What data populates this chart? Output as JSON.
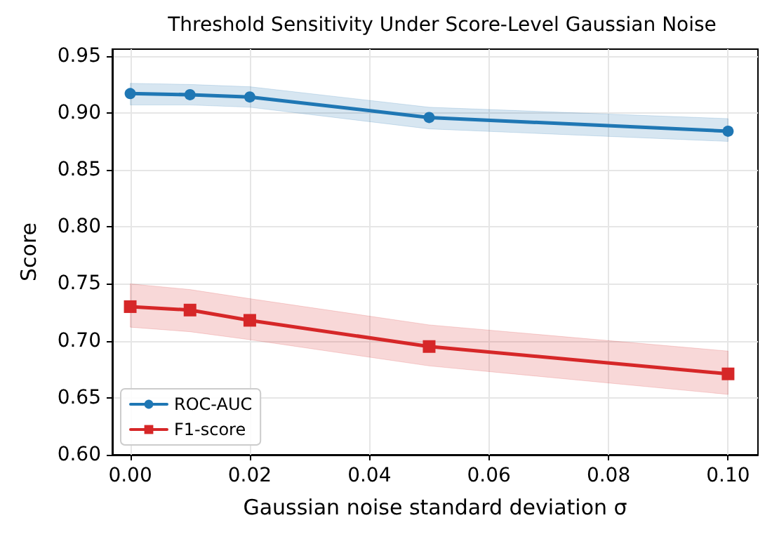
{
  "chart_data": {
    "type": "line",
    "title": "Threshold Sensitivity Under Score-Level Gaussian Noise",
    "xlabel": "Gaussian noise standard deviation σ",
    "ylabel": "Score",
    "x": [
      0,
      0.01,
      0.02,
      0.05,
      0.1
    ],
    "series": [
      {
        "name": "ROC-AUC",
        "color": "#1f77b4",
        "marker": "circle",
        "values": [
          0.917,
          0.916,
          0.914,
          0.896,
          0.884
        ],
        "lower": [
          0.907,
          0.907,
          0.905,
          0.886,
          0.875
        ],
        "upper": [
          0.926,
          0.925,
          0.923,
          0.905,
          0.895
        ]
      },
      {
        "name": "F1-score",
        "color": "#d62728",
        "marker": "square",
        "values": [
          0.73,
          0.727,
          0.718,
          0.695,
          0.671
        ],
        "lower": [
          0.712,
          0.708,
          0.701,
          0.678,
          0.653
        ],
        "upper": [
          0.75,
          0.745,
          0.737,
          0.714,
          0.691
        ]
      }
    ],
    "xlim": [
      -0.003,
      0.105
    ],
    "xticks": [
      {
        "value": 0,
        "label": "0.00"
      },
      {
        "value": 0.02,
        "label": "0.02"
      },
      {
        "value": 0.04,
        "label": "0.04"
      },
      {
        "value": 0.06,
        "label": "0.06"
      },
      {
        "value": 0.08,
        "label": "0.08"
      },
      {
        "value": 0.1,
        "label": "0.10"
      }
    ],
    "ylim": [
      0.6,
      0.956
    ],
    "yticks": [
      {
        "value": 0.6,
        "label": "0.60"
      },
      {
        "value": 0.65,
        "label": "0.65"
      },
      {
        "value": 0.7,
        "label": "0.70"
      },
      {
        "value": 0.75,
        "label": "0.75"
      },
      {
        "value": 0.8,
        "label": "0.80"
      },
      {
        "value": 0.85,
        "label": "0.85"
      },
      {
        "value": 0.9,
        "label": "0.90"
      },
      {
        "value": 0.95,
        "label": "0.95"
      }
    ],
    "grid": true,
    "legend": "bottom left",
    "line_style": "solid"
  }
}
